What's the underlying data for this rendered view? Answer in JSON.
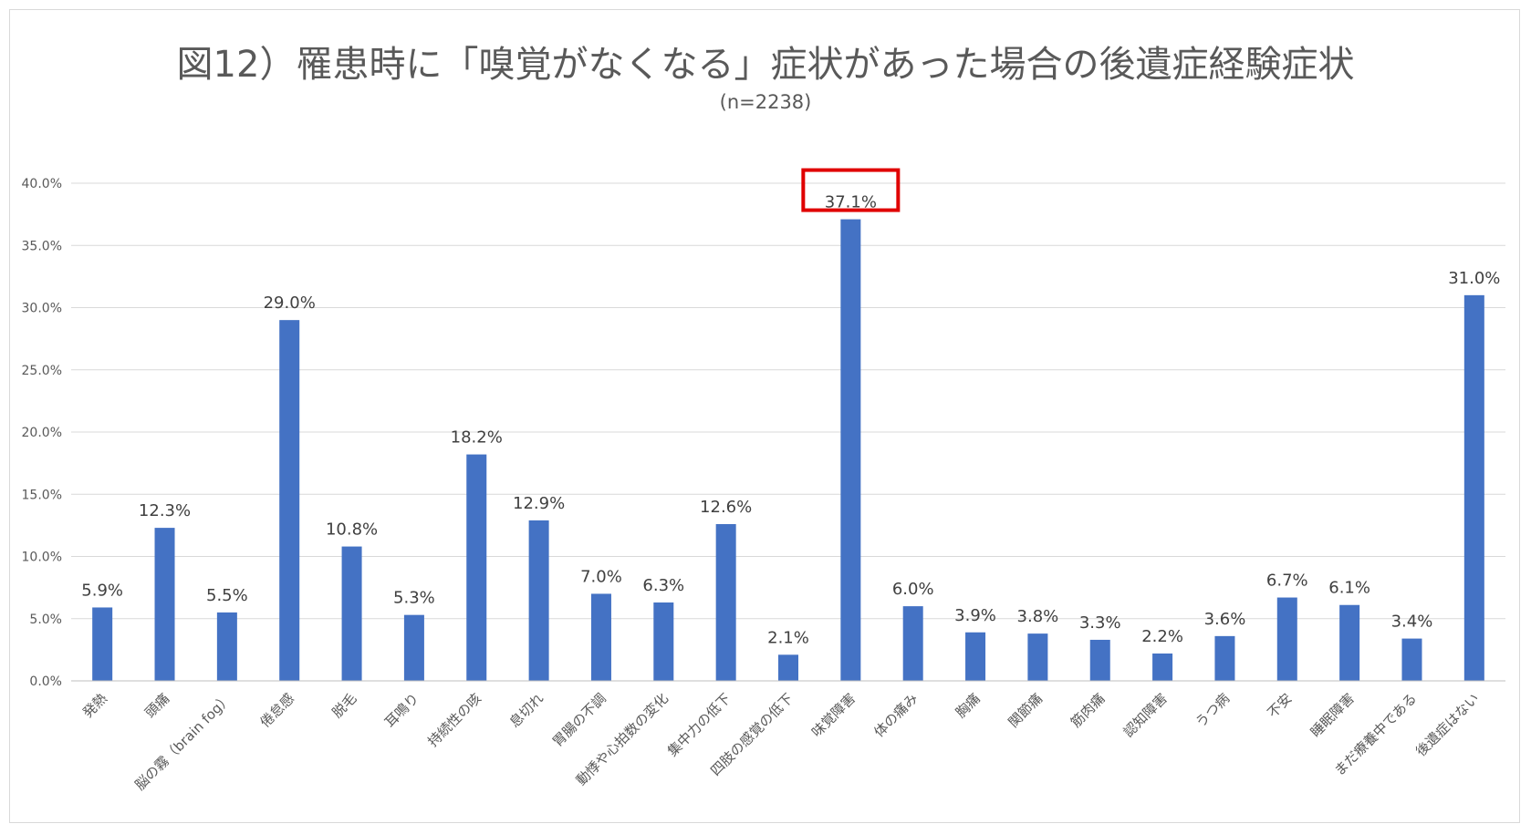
{
  "chart_data": {
    "type": "bar",
    "title": "図12）罹患時に「嗅覚がなくなる」症状があった場合の後遺症経験症状",
    "subtitle": "(n=2238)",
    "categories": [
      "発熱",
      "頭痛",
      "脳の霧（brain fog）",
      "倦怠感",
      "脱毛",
      "耳鳴り",
      "持続性の咳",
      "息切れ",
      "胃腸の不調",
      "動悸や心拍数の変化",
      "集中力の低下",
      "四肢の感覚の低下",
      "味覚障害",
      "体の痛み",
      "胸痛",
      "関節痛",
      "筋肉痛",
      "認知障害",
      "うつ病",
      "不安",
      "睡眠障害",
      "まだ療養中である",
      "後遺症はない"
    ],
    "values": [
      5.9,
      12.3,
      5.5,
      29.0,
      10.8,
      5.3,
      18.2,
      12.9,
      7.0,
      6.3,
      12.6,
      2.1,
      37.1,
      6.0,
      3.9,
      3.8,
      3.3,
      2.2,
      3.6,
      6.7,
      6.1,
      3.4,
      31.0
    ],
    "data_labels": [
      "5.9%",
      "12.3%",
      "5.5%",
      "29.0%",
      "10.8%",
      "5.3%",
      "18.2%",
      "12.9%",
      "7.0%",
      "6.3%",
      "12.6%",
      "2.1%",
      "37.1%",
      "6.0%",
      "3.9%",
      "3.8%",
      "3.3%",
      "2.2%",
      "3.6%",
      "6.7%",
      "6.1%",
      "3.4%",
      "31.0%"
    ],
    "ylim": [
      0,
      40
    ],
    "y_ticks": [
      0,
      5,
      10,
      15,
      20,
      25,
      30,
      35,
      40
    ],
    "y_tick_labels": [
      "0.0%",
      "5.0%",
      "10.0%",
      "15.0%",
      "20.0%",
      "25.0%",
      "30.0%",
      "35.0%",
      "40.0%"
    ],
    "xlabel": "",
    "ylabel": "",
    "grid": true,
    "legend": "none",
    "highlighted_category": "味覚障害",
    "bar_color": "#4472c4",
    "highlight_box_color": "#e00000",
    "grid_color": "#d9d9d9",
    "text_color": "#595959",
    "label_color": "#404040"
  }
}
